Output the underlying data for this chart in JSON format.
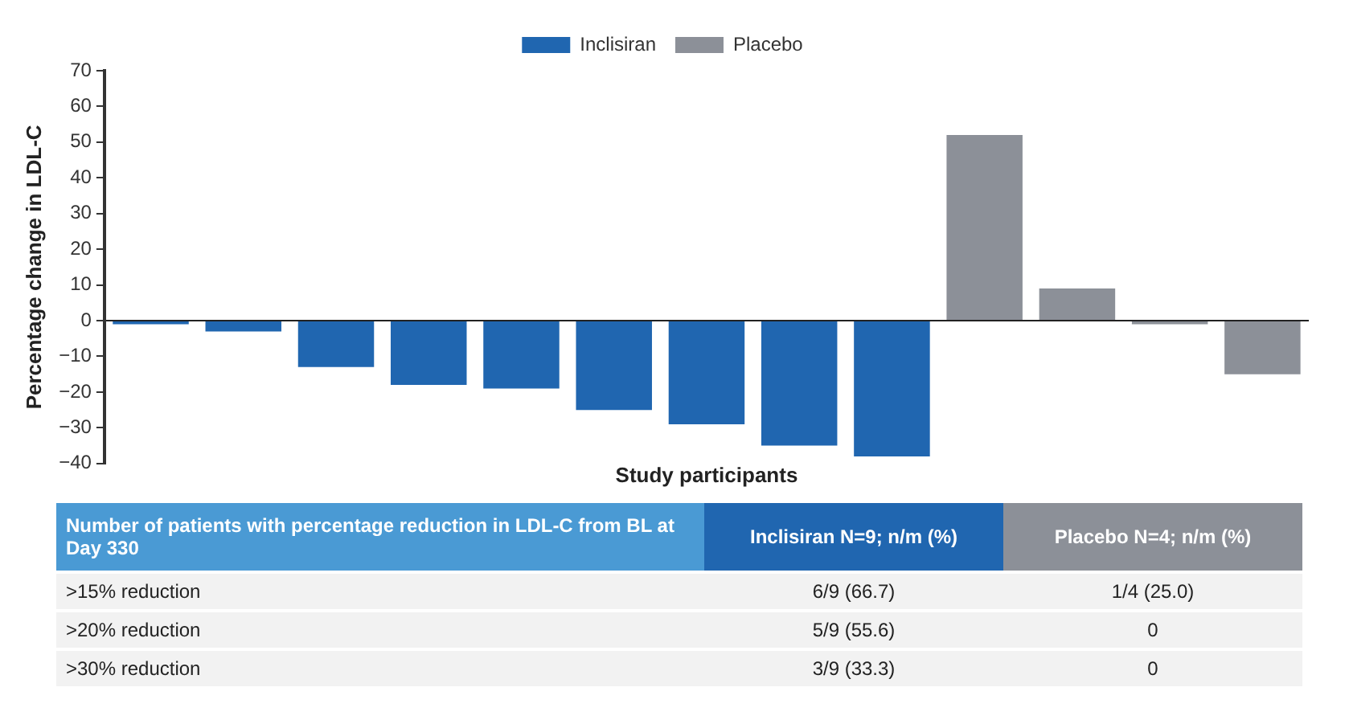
{
  "chart_data": {
    "type": "bar",
    "xlabel": "Study participants",
    "ylabel": "Percentage change in LDL-C",
    "categories": [
      null,
      null,
      null,
      null,
      null,
      null,
      null,
      null,
      null,
      null,
      null,
      null,
      null
    ],
    "series": [
      {
        "name": "Inclisiran",
        "color": "#2066b0",
        "values": [
          -1,
          -3,
          -13,
          -18,
          -19,
          -25,
          -29,
          -35,
          -38,
          null,
          null,
          null,
          null
        ]
      },
      {
        "name": "Placebo",
        "color": "#8c9098",
        "values": [
          null,
          null,
          null,
          null,
          null,
          null,
          null,
          null,
          null,
          52,
          9,
          -1,
          -15
        ]
      }
    ],
    "ylim": [
      -40,
      70
    ],
    "yticks": [
      -40,
      -30,
      -20,
      -10,
      0,
      10,
      20,
      30,
      40,
      50,
      60,
      70
    ],
    "tick_labels": "y",
    "legend": "top",
    "annotations": [
      "Number of patients with percentage reduction in LDL-C from BL at Day 330",
      "Inclisiran N=9; n/m (%)",
      "Placebo N=4; n/m (%)",
      ">15% reduction",
      "6/9 (66.7)",
      "1/4 (25.0)",
      ">20% reduction",
      "5/9 (55.6)",
      "0",
      ">30% reduction",
      "3/9 (33.3)",
      "0"
    ]
  }
}
